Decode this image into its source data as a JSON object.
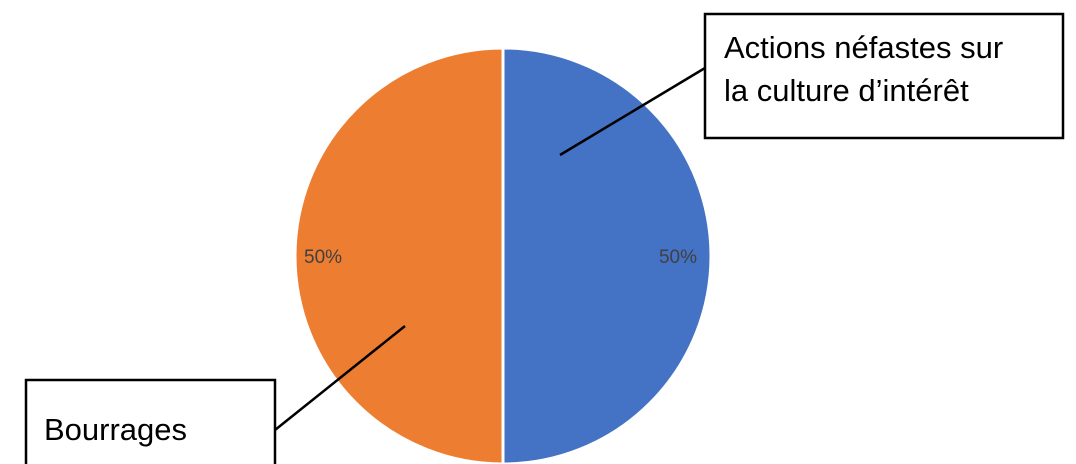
{
  "chart_data": {
    "type": "pie",
    "title": "",
    "slices": [
      {
        "name": "Actions néfastes sur la culture d’intérêt",
        "label_lines": [
          "Actions néfastes sur",
          "la culture d’intérêt"
        ],
        "value": 50,
        "percent_label": "50%",
        "color": "#4472C4"
      },
      {
        "name": "Bourrages",
        "label_lines": [
          "Bourrages"
        ],
        "value": 50,
        "percent_label": "50%",
        "color": "#ED7D31"
      }
    ],
    "start_angle_deg": 0,
    "direction": "clockwise",
    "legend": "none",
    "label_style": "callouts"
  }
}
